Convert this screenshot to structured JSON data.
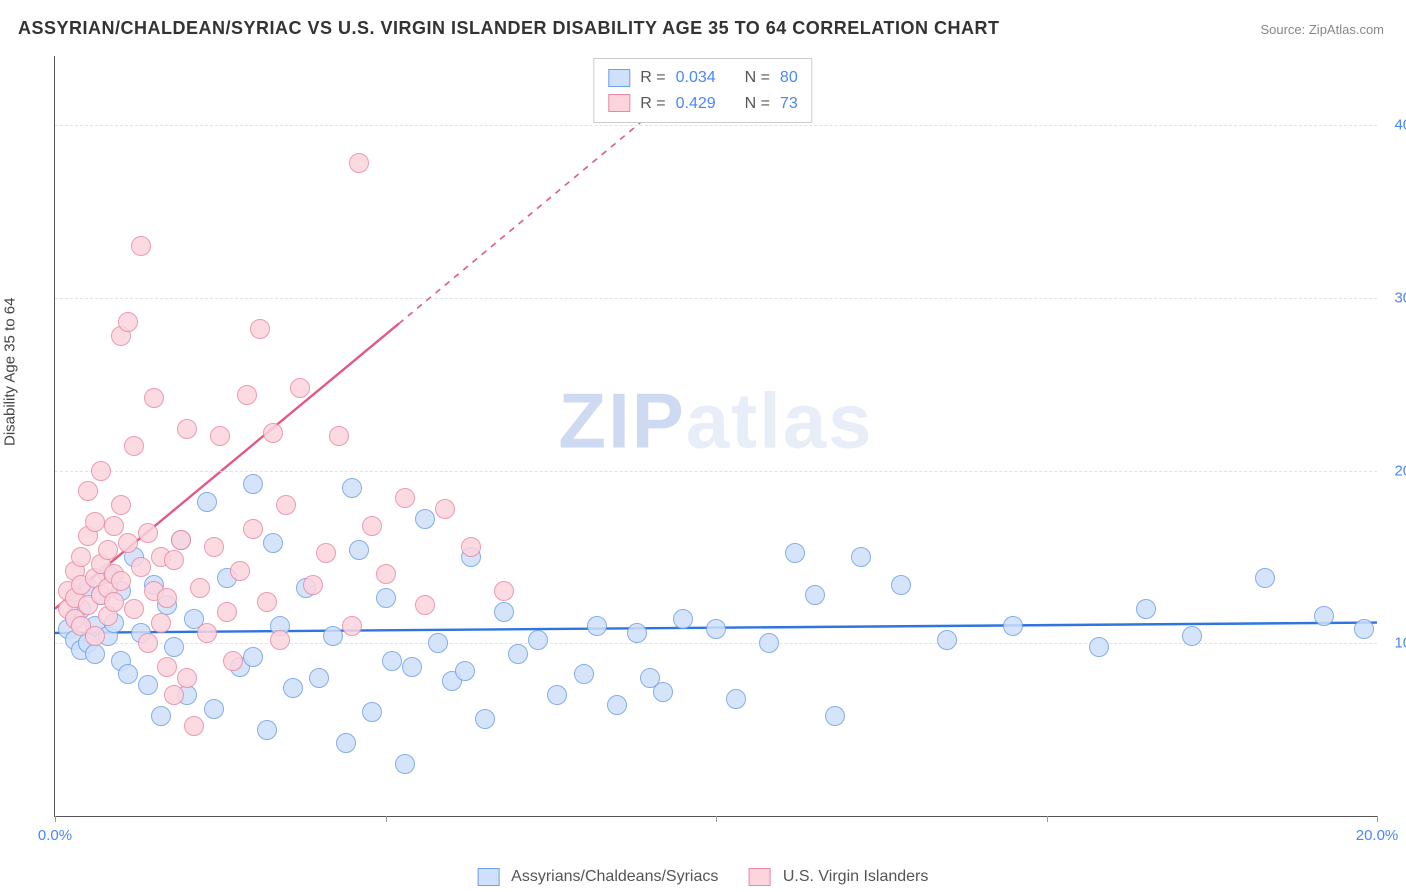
{
  "title": "ASSYRIAN/CHALDEAN/SYRIAC VS U.S. VIRGIN ISLANDER DISABILITY AGE 35 TO 64 CORRELATION CHART",
  "source": "Source: ZipAtlas.com",
  "ylabel": "Disability Age 35 to 64",
  "watermark": {
    "z": "ZIP",
    "rest": "atlas"
  },
  "chart": {
    "type": "scatter-with-trend",
    "xlim": [
      0,
      20
    ],
    "ylim": [
      0,
      44
    ],
    "yticks": [
      10,
      20,
      30,
      40
    ],
    "ytick_labels": [
      "10.0%",
      "20.0%",
      "30.0%",
      "40.0%"
    ],
    "xticks": [
      0,
      5,
      10,
      15,
      20
    ],
    "xtick_labels": [
      "0.0%",
      "",
      "",
      "",
      "20.0%"
    ],
    "grid_color": "#e2e2e2",
    "background_color": "#ffffff",
    "marker_radius": 9,
    "marker_border_width": 1.2,
    "series": [
      {
        "name": "Assyrians/Chaldeans/Syriacs",
        "R": "0.034",
        "N": "80",
        "fill": "#cfe0fa",
        "stroke": "#6fa0e8",
        "line_color": "#2f74e0",
        "trend": {
          "x1": 0,
          "y1": 10.6,
          "x2": 20,
          "y2": 11.2,
          "dash": false,
          "width": 2.4
        },
        "points": [
          [
            0.2,
            10.8
          ],
          [
            0.3,
            11.5
          ],
          [
            0.3,
            10.2
          ],
          [
            0.4,
            9.6
          ],
          [
            0.4,
            12.0
          ],
          [
            0.5,
            10.0
          ],
          [
            0.5,
            13.2
          ],
          [
            0.6,
            11.0
          ],
          [
            0.6,
            9.4
          ],
          [
            0.7,
            12.8
          ],
          [
            0.8,
            10.4
          ],
          [
            0.8,
            14.0
          ],
          [
            0.9,
            11.2
          ],
          [
            1.0,
            9.0
          ],
          [
            1.0,
            13.0
          ],
          [
            1.1,
            8.2
          ],
          [
            1.2,
            15.0
          ],
          [
            1.3,
            10.6
          ],
          [
            1.4,
            7.6
          ],
          [
            1.5,
            13.4
          ],
          [
            1.6,
            5.8
          ],
          [
            1.7,
            12.2
          ],
          [
            1.8,
            9.8
          ],
          [
            1.9,
            16.0
          ],
          [
            2.0,
            7.0
          ],
          [
            2.1,
            11.4
          ],
          [
            2.3,
            18.2
          ],
          [
            2.4,
            6.2
          ],
          [
            2.6,
            13.8
          ],
          [
            2.8,
            8.6
          ],
          [
            3.0,
            19.2
          ],
          [
            3.0,
            9.2
          ],
          [
            3.2,
            5.0
          ],
          [
            3.3,
            15.8
          ],
          [
            3.4,
            11.0
          ],
          [
            3.6,
            7.4
          ],
          [
            3.8,
            13.2
          ],
          [
            4.0,
            8.0
          ],
          [
            4.2,
            10.4
          ],
          [
            4.4,
            4.2
          ],
          [
            4.5,
            19.0
          ],
          [
            4.6,
            15.4
          ],
          [
            4.8,
            6.0
          ],
          [
            5.0,
            12.6
          ],
          [
            5.1,
            9.0
          ],
          [
            5.3,
            3.0
          ],
          [
            5.4,
            8.6
          ],
          [
            5.6,
            17.2
          ],
          [
            5.8,
            10.0
          ],
          [
            6.0,
            7.8
          ],
          [
            6.2,
            8.4
          ],
          [
            6.3,
            15.0
          ],
          [
            6.5,
            5.6
          ],
          [
            6.8,
            11.8
          ],
          [
            7.0,
            9.4
          ],
          [
            7.3,
            10.2
          ],
          [
            7.6,
            7.0
          ],
          [
            8.0,
            8.2
          ],
          [
            8.2,
            11.0
          ],
          [
            8.5,
            6.4
          ],
          [
            8.8,
            10.6
          ],
          [
            9.0,
            8.0
          ],
          [
            9.2,
            7.2
          ],
          [
            9.5,
            11.4
          ],
          [
            10.0,
            10.8
          ],
          [
            10.3,
            6.8
          ],
          [
            10.8,
            10.0
          ],
          [
            11.2,
            15.2
          ],
          [
            11.5,
            12.8
          ],
          [
            11.8,
            5.8
          ],
          [
            12.2,
            15.0
          ],
          [
            12.8,
            13.4
          ],
          [
            13.5,
            10.2
          ],
          [
            14.5,
            11.0
          ],
          [
            15.8,
            9.8
          ],
          [
            16.5,
            12.0
          ],
          [
            17.2,
            10.4
          ],
          [
            18.3,
            13.8
          ],
          [
            19.2,
            11.6
          ],
          [
            19.8,
            10.8
          ]
        ]
      },
      {
        "name": "U.S. Virgin Islanders",
        "R": "0.429",
        "N": "73",
        "fill": "#fbd4de",
        "stroke": "#e88aa5",
        "line_color": "#e05a84",
        "trend": {
          "x1": 0,
          "y1": 12.0,
          "x2": 5.2,
          "y2": 28.5,
          "dash": false,
          "width": 2.4
        },
        "trend_ext": {
          "x1": 5.2,
          "y1": 28.5,
          "x2": 9.0,
          "y2": 40.6,
          "dash": true,
          "width": 1.6
        },
        "points": [
          [
            0.2,
            12.0
          ],
          [
            0.2,
            13.0
          ],
          [
            0.3,
            11.4
          ],
          [
            0.3,
            14.2
          ],
          [
            0.3,
            12.6
          ],
          [
            0.4,
            15.0
          ],
          [
            0.4,
            13.4
          ],
          [
            0.4,
            11.0
          ],
          [
            0.5,
            16.2
          ],
          [
            0.5,
            12.2
          ],
          [
            0.5,
            18.8
          ],
          [
            0.6,
            13.8
          ],
          [
            0.6,
            10.4
          ],
          [
            0.6,
            17.0
          ],
          [
            0.7,
            14.6
          ],
          [
            0.7,
            12.8
          ],
          [
            0.7,
            20.0
          ],
          [
            0.8,
            15.4
          ],
          [
            0.8,
            11.6
          ],
          [
            0.8,
            13.2
          ],
          [
            0.9,
            16.8
          ],
          [
            0.9,
            12.4
          ],
          [
            0.9,
            14.0
          ],
          [
            1.0,
            18.0
          ],
          [
            1.0,
            27.8
          ],
          [
            1.0,
            13.6
          ],
          [
            1.1,
            15.8
          ],
          [
            1.1,
            28.6
          ],
          [
            1.2,
            12.0
          ],
          [
            1.2,
            21.4
          ],
          [
            1.3,
            33.0
          ],
          [
            1.3,
            14.4
          ],
          [
            1.4,
            10.0
          ],
          [
            1.4,
            16.4
          ],
          [
            1.5,
            13.0
          ],
          [
            1.5,
            24.2
          ],
          [
            1.6,
            11.2
          ],
          [
            1.6,
            15.0
          ],
          [
            1.7,
            8.6
          ],
          [
            1.7,
            12.6
          ],
          [
            1.8,
            7.0
          ],
          [
            1.8,
            14.8
          ],
          [
            1.9,
            16.0
          ],
          [
            2.0,
            8.0
          ],
          [
            2.0,
            22.4
          ],
          [
            2.1,
            5.2
          ],
          [
            2.2,
            13.2
          ],
          [
            2.3,
            10.6
          ],
          [
            2.4,
            15.6
          ],
          [
            2.5,
            22.0
          ],
          [
            2.6,
            11.8
          ],
          [
            2.7,
            9.0
          ],
          [
            2.8,
            14.2
          ],
          [
            2.9,
            24.4
          ],
          [
            3.0,
            16.6
          ],
          [
            3.1,
            28.2
          ],
          [
            3.2,
            12.4
          ],
          [
            3.3,
            22.2
          ],
          [
            3.4,
            10.2
          ],
          [
            3.5,
            18.0
          ],
          [
            3.7,
            24.8
          ],
          [
            3.9,
            13.4
          ],
          [
            4.1,
            15.2
          ],
          [
            4.3,
            22.0
          ],
          [
            4.5,
            11.0
          ],
          [
            4.6,
            37.8
          ],
          [
            4.8,
            16.8
          ],
          [
            5.0,
            14.0
          ],
          [
            5.3,
            18.4
          ],
          [
            5.6,
            12.2
          ],
          [
            5.9,
            17.8
          ],
          [
            6.3,
            15.6
          ],
          [
            6.8,
            13.0
          ]
        ]
      }
    ]
  },
  "legend_top": [
    {
      "sw_fill": "#cfe0fa",
      "sw_stroke": "#6fa0e8",
      "R_label": "R =",
      "R": "0.034",
      "N_label": "N =",
      "N": "80"
    },
    {
      "sw_fill": "#fbd4de",
      "sw_stroke": "#e88aa5",
      "R_label": "R =",
      "R": "0.429",
      "N_label": "N =",
      "N": "73"
    }
  ],
  "legend_bottom": [
    {
      "sw_fill": "#cfe0fa",
      "sw_stroke": "#6fa0e8",
      "label": "Assyrians/Chaldeans/Syriacs"
    },
    {
      "sw_fill": "#fbd4de",
      "sw_stroke": "#e88aa5",
      "label": "U.S. Virgin Islanders"
    }
  ]
}
